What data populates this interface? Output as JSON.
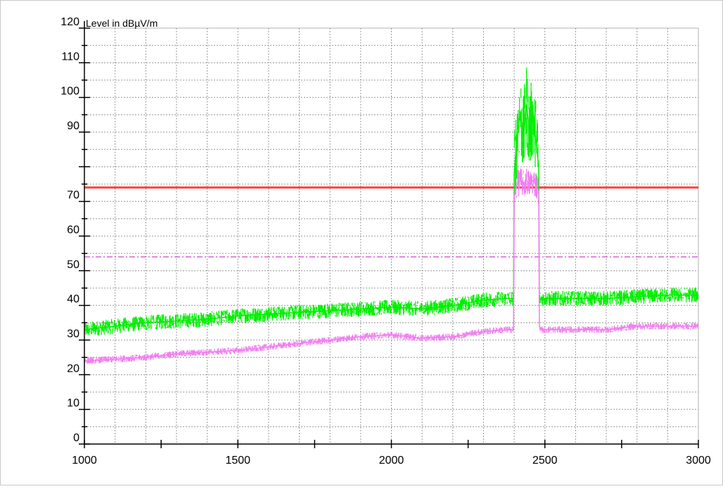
{
  "chart_data": {
    "type": "line",
    "title": "",
    "ylabel": "Level in dBµV/m",
    "xlabel": "",
    "xlim": [
      1000,
      3000
    ],
    "ylim": [
      0,
      120
    ],
    "x_ticks": [
      1000,
      1500,
      2000,
      2500,
      3000
    ],
    "y_ticks": [
      0,
      10,
      20,
      30,
      40,
      50,
      60,
      70,
      80,
      90,
      100,
      110,
      120
    ],
    "y_tick_labels": [
      "0",
      "10",
      "20",
      "30",
      "40",
      "50",
      "60",
      "70",
      "",
      "90",
      "100",
      "110",
      "120"
    ],
    "grid": true,
    "limit_lines": [
      {
        "value": 74,
        "color": "#ff3b3b",
        "style": "solid"
      },
      {
        "value": 54,
        "color": "#d24bd2",
        "style": "dash-dot"
      }
    ],
    "series": [
      {
        "color": "#00ee00",
        "x": [
          1000,
          1100,
          1200,
          1300,
          1400,
          1500,
          1600,
          1700,
          1800,
          1900,
          2000,
          2100,
          2200,
          2300,
          2380,
          2398,
          2400,
          2410,
          2420,
          2430,
          2440,
          2450,
          2460,
          2470,
          2480,
          2482,
          2485,
          2500,
          2600,
          2700,
          2800,
          2900,
          3000
        ],
        "y": [
          33,
          34,
          35,
          35.5,
          36,
          37,
          37.5,
          38,
          38.5,
          39,
          39.5,
          39,
          40,
          41.5,
          42,
          42,
          78,
          90,
          96,
          88,
          98,
          90,
          95,
          88,
          80,
          42,
          42,
          42,
          42,
          42,
          42.5,
          43,
          43
        ]
      },
      {
        "color": "#f07ef0",
        "x": [
          1000,
          1100,
          1200,
          1300,
          1400,
          1500,
          1600,
          1700,
          1800,
          1900,
          2000,
          2100,
          2200,
          2300,
          2380,
          2398,
          2400,
          2410,
          2420,
          2430,
          2440,
          2450,
          2460,
          2470,
          2480,
          2482,
          2485,
          2500,
          2600,
          2700,
          2800,
          2900,
          3000
        ],
        "y": [
          24,
          24.5,
          25,
          26,
          26.5,
          27,
          28,
          29,
          30,
          31,
          31.5,
          30.5,
          31,
          32.5,
          33,
          33,
          72,
          75,
          76,
          75,
          76,
          75,
          76,
          75,
          73,
          34,
          33,
          33,
          33,
          33,
          34,
          34,
          34
        ]
      }
    ]
  }
}
